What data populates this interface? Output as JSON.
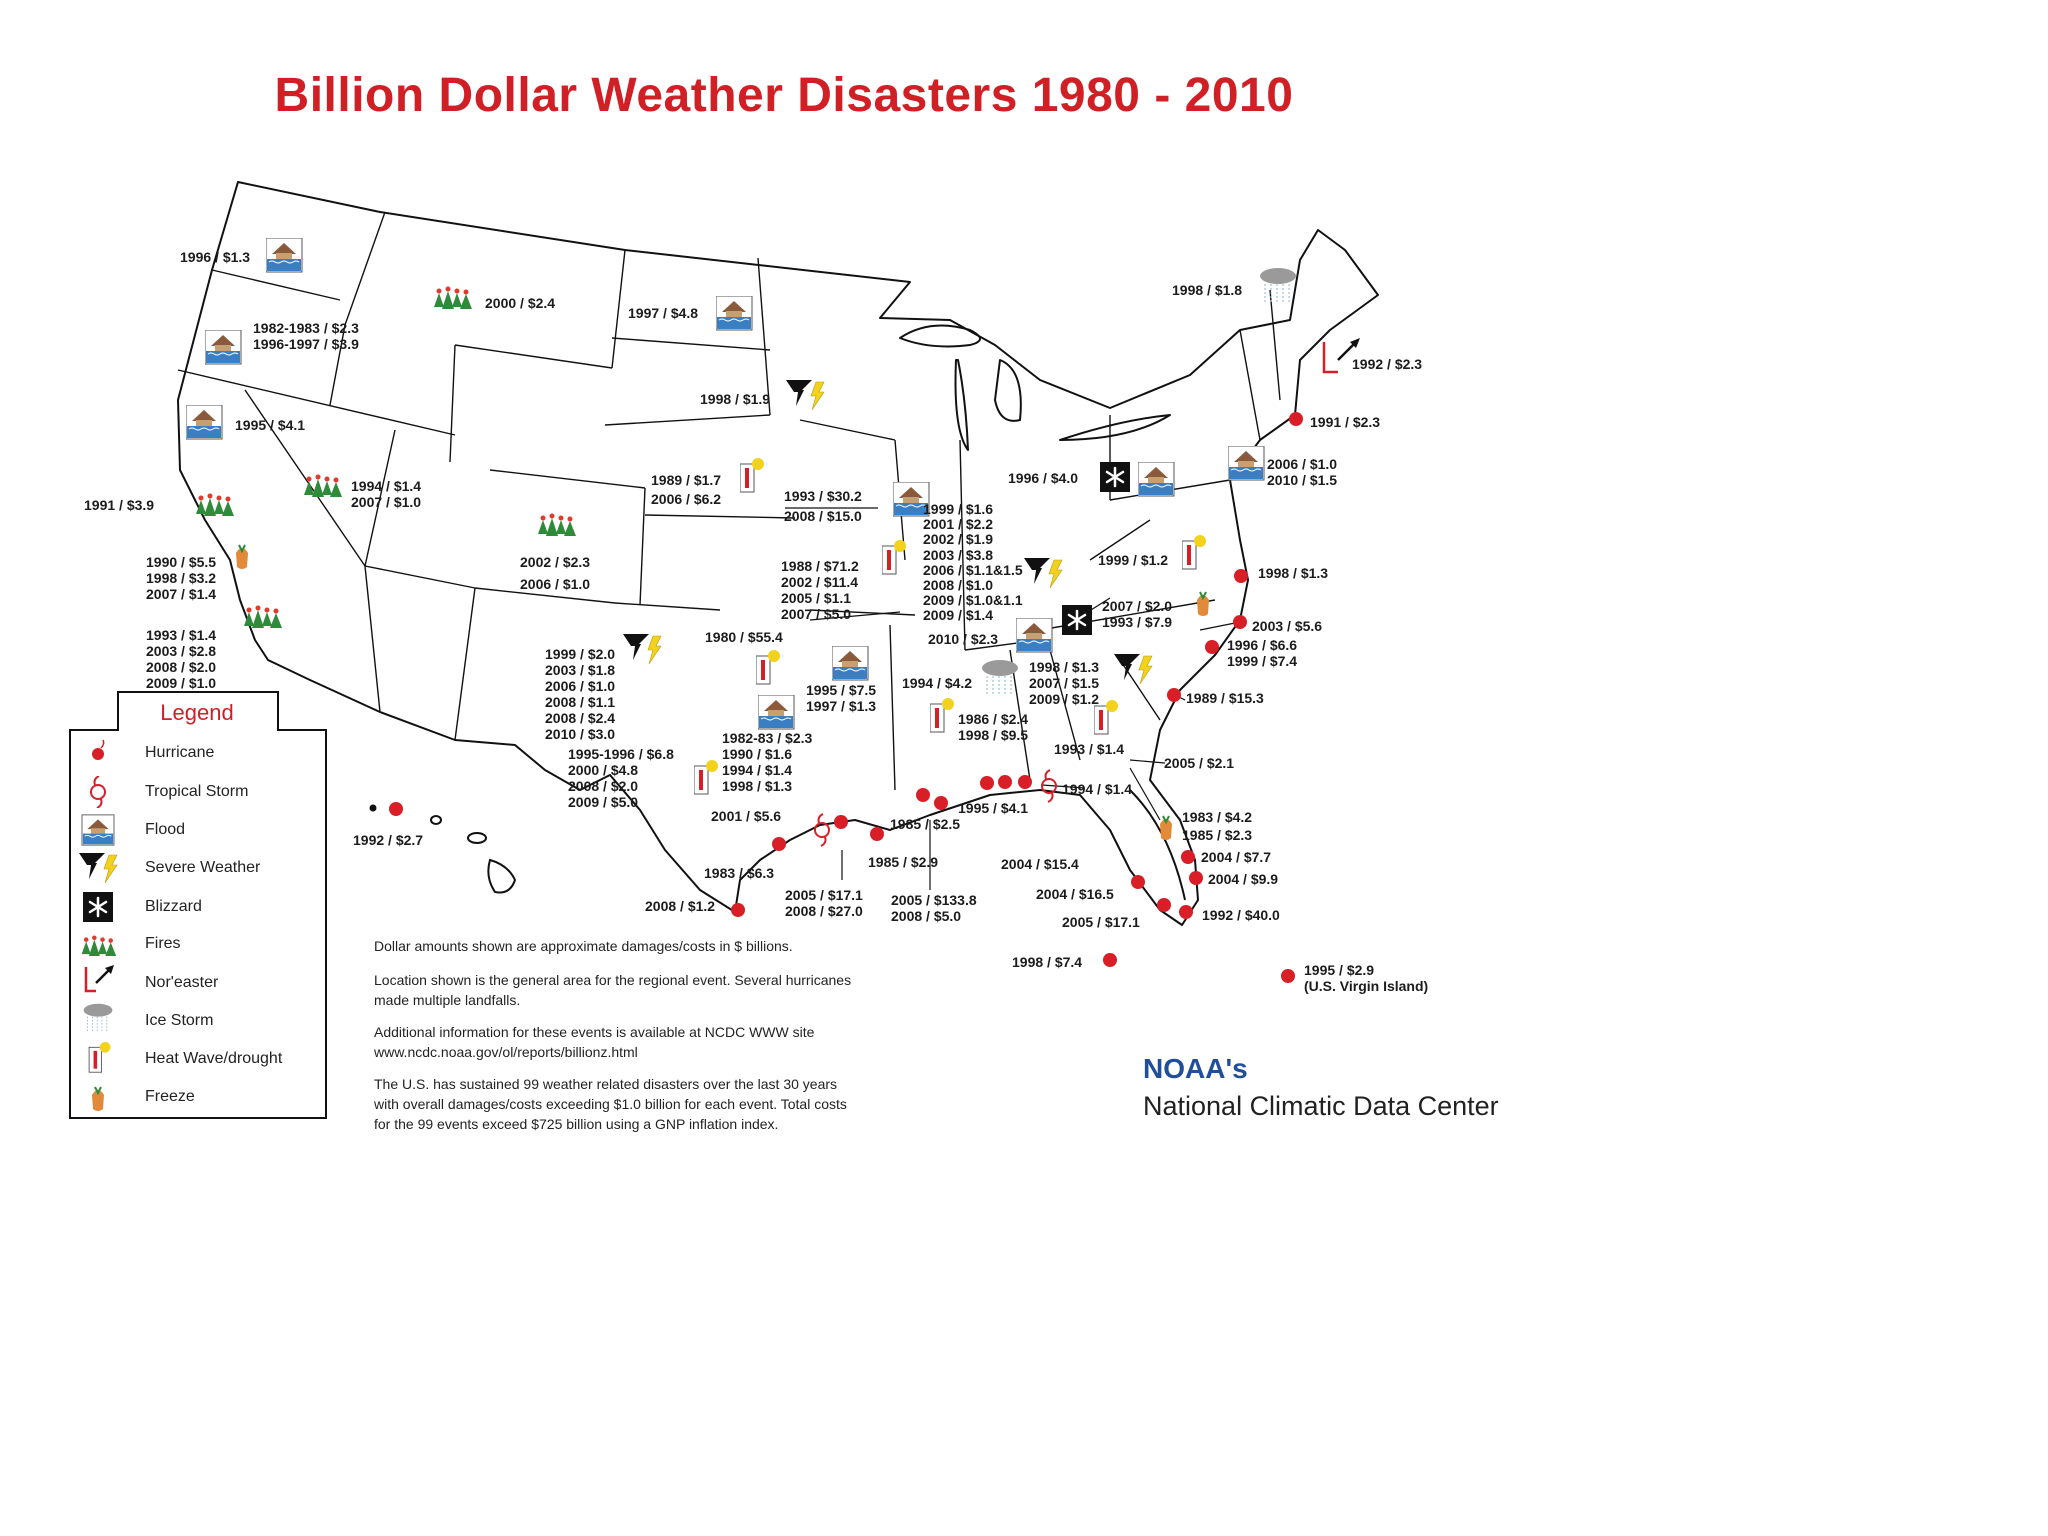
{
  "title": "Billion Dollar Weather Disasters 1980 - 2010",
  "colors": {
    "title": "#d11f26",
    "hurricane": "#d81f27",
    "flood_water": "#3a7fc4",
    "fire": "#2f8a3a",
    "org": "#1f4e9a"
  },
  "legend": {
    "title": "Legend",
    "items": [
      {
        "label": "Hurricane",
        "icon": "hurricane-icon"
      },
      {
        "label": "Tropical Storm",
        "icon": "tropical-storm-icon"
      },
      {
        "label": "Flood",
        "icon": "flood-icon"
      },
      {
        "label": "Severe Weather",
        "icon": "severe-weather-icon"
      },
      {
        "label": "Blizzard",
        "icon": "blizzard-icon"
      },
      {
        "label": "Fires",
        "icon": "fires-icon"
      },
      {
        "label": "Nor'easter",
        "icon": "noreaster-icon"
      },
      {
        "label": "Ice Storm",
        "icon": "ice-storm-icon"
      },
      {
        "label": "Heat Wave/drought",
        "icon": "heat-wave-icon"
      },
      {
        "label": "Freeze",
        "icon": "freeze-icon"
      }
    ]
  },
  "labels": [
    {
      "id": "wa-flood",
      "text": "1996 / $1.3"
    },
    {
      "id": "mt-fire",
      "text": "2000 / $2.4"
    },
    {
      "id": "nd-flood",
      "text": "1997 / $4.8"
    },
    {
      "id": "or-flood",
      "text": "1982-1983 / $2.3\n1996-1997 / $3.9"
    },
    {
      "id": "ca-flood-n",
      "text": "1995 / $4.1"
    },
    {
      "id": "nv-fire",
      "text": "1994 / $1.4\n2007 / $1.0"
    },
    {
      "id": "ca-fire-n",
      "text": "1991 / $3.9"
    },
    {
      "id": "ca-freeze",
      "text": "1990 / $5.5\n1998 / $3.2\n2007 / $1.4"
    },
    {
      "id": "ca-fire-s",
      "text": "1993 / $1.4\n2003 / $2.8\n2008 / $2.0\n2009 / $1.0"
    },
    {
      "id": "co-fire",
      "text": "2002 / $2.3\n2006 / $1.0"
    },
    {
      "id": "mn-severe",
      "text": "1998 / $1.9"
    },
    {
      "id": "ne-heat",
      "text": "1989 / $1.7\n2006 / $6.2"
    },
    {
      "id": "ia-flood",
      "text": "1993 / $30.2\n2008 / $15.0"
    },
    {
      "id": "mw-severe",
      "text": "1999 / $1.6\n2001 / $2.2\n2002 / $1.9\n2003 / $3.8\n2006 / $1.1&1.5\n2008 / $1.0\n2009 / $1.0&1.1\n2009 / $1.4"
    },
    {
      "id": "mo-heat",
      "text": "1988 / $71.2\n2002 / $11.4\n2005 / $1.1\n2007 / $5.0"
    },
    {
      "id": "tn-flood",
      "text": "2010 / $2.3"
    },
    {
      "id": "oh-blizzard",
      "text": "1996 / $4.0"
    },
    {
      "id": "va-heat",
      "text": "1999 / $1.2"
    },
    {
      "id": "me-ice",
      "text": "1998 / $1.8"
    },
    {
      "id": "ne-noreaster",
      "text": "1992 / $2.3"
    },
    {
      "id": "ri-hurricane",
      "text": "1991 / $2.3"
    },
    {
      "id": "nj-flood",
      "text": "2006 / $1.0\n2010 / $1.5"
    },
    {
      "id": "md-hurricane",
      "text": "1998 / $1.3"
    },
    {
      "id": "va-blizzard",
      "text": "2007 / $2.0\n1993 / $7.9"
    },
    {
      "id": "nc-hurricane-a",
      "text": "2003 / $5.6"
    },
    {
      "id": "nc-hurricane-b",
      "text": "1996 / $6.6\n1999 / $7.4"
    },
    {
      "id": "sc-hurricane",
      "text": "1989 / $15.3"
    },
    {
      "id": "tx-severe",
      "text": "1999 / $2.0\n2003 / $1.8\n2006 / $1.0\n2008 / $1.1\n2008 / $2.4\n2010 / $3.0"
    },
    {
      "id": "ok-heat",
      "text": "1980 / $55.4"
    },
    {
      "id": "ms-flood",
      "text": "1995 / $7.5\n1997 / $1.3"
    },
    {
      "id": "se-ice",
      "text": "1994 / $4.2"
    },
    {
      "id": "ga-severe",
      "text": "1998 / $1.3\n2007 / $1.5\n2009 / $1.2"
    },
    {
      "id": "al-heat",
      "text": "1986 / $2.4\n1998 / $9.5"
    },
    {
      "id": "ga-flood",
      "text": "1993 / $1.4"
    },
    {
      "id": "tx-flood",
      "text": "1982-83 / $2.3\n1990 / $1.6\n1994 / $1.4\n1998 / $1.3"
    },
    {
      "id": "tx-heat",
      "text": "1995-1996 / $6.8\n2000 / $4.8\n2008 / $2.0\n2009 / $5.0"
    },
    {
      "id": "fl-freeze-line",
      "text": "2005 / $2.1"
    },
    {
      "id": "fl-tropical",
      "text": "1994 / $1.4"
    },
    {
      "id": "al-hurricane",
      "text": "1995 / $4.1"
    },
    {
      "id": "ms-hurricane",
      "text": "1985 / $2.5"
    },
    {
      "id": "fl-freeze",
      "text": "1983 / $4.2\n1985 / $2.3"
    },
    {
      "id": "tx-ts",
      "text": "2001 / $5.6"
    },
    {
      "id": "la-hurricane",
      "text": "1985 / $2.9"
    },
    {
      "id": "fl-panhandle",
      "text": "2004 / $15.4"
    },
    {
      "id": "fl-a",
      "text": "2004 / $7.7"
    },
    {
      "id": "fl-b",
      "text": "2004 / $9.9"
    },
    {
      "id": "tx-hurricane",
      "text": "1983 / $6.3"
    },
    {
      "id": "tx-hurricane-s",
      "text": "2008 / $1.2"
    },
    {
      "id": "la-katrina-a",
      "text": "2005 / $17.1\n2008 / $27.0"
    },
    {
      "id": "la-katrina-b",
      "text": "2005 / $133.8\n2008 / $5.0"
    },
    {
      "id": "fl-c",
      "text": "2004 / $16.5"
    },
    {
      "id": "fl-d",
      "text": "2005 / $17.1"
    },
    {
      "id": "fl-andrew",
      "text": "1992 / $40.0"
    },
    {
      "id": "fl-keys",
      "text": "1998 / $7.4"
    },
    {
      "id": "hi-hurricane",
      "text": "1992 / $2.7"
    },
    {
      "id": "vi-hurricane",
      "text": "1995 / $2.9\n(U.S. Virgin Island)"
    }
  ],
  "notes": [
    "Dollar amounts shown are approximate damages/costs in $ billions.",
    "Location shown is the general area for the regional event. Several hurricanes\nmade multiple landfalls.",
    "Additional information for these events is available at NCDC WWW site\nwww.ncdc.noaa.gov/ol/reports/billionz.html",
    "The U.S. has sustained 99 weather related disasters over the last 30 years\nwith overall damages/costs exceeding $1.0 billion for each event. Total costs\nfor the 99 events exceed $725 billion using a GNP inflation index."
  ],
  "org": {
    "line1": "NOAA's",
    "line2": "National Climatic Data Center"
  }
}
